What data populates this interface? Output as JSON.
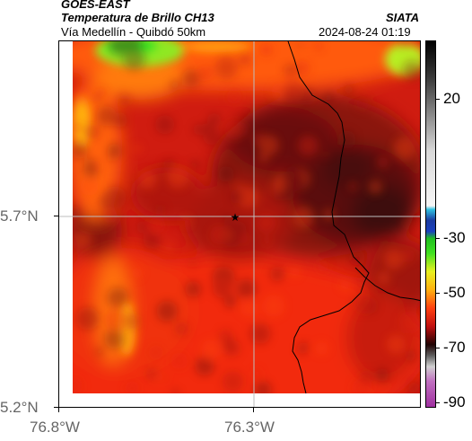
{
  "header": {
    "satellite": "GOES-EAST",
    "product": "Temperatura de Brillo CH13",
    "region": "Vía Medellín - Quibdó 50km",
    "source": "SIATA",
    "timestamp": "2024-08-24 01:19"
  },
  "axes": {
    "lat_ticks": [
      "5.7°N",
      "5.2°N"
    ],
    "lon_ticks": [
      "76.8°W",
      "76.3°W"
    ]
  },
  "colorbar": {
    "ticks": [
      "20",
      "-30",
      "-50",
      "-70",
      "-90"
    ]
  },
  "colors": {
    "cold_core": "#3a0a0a",
    "dark_red": "#7a1010",
    "red": "#c81a10",
    "bright_red": "#f02a10",
    "orange": "#ff6a10",
    "yellow": "#e8f020",
    "green": "#30e020"
  },
  "markers": {
    "location_icon": "star-icon"
  }
}
